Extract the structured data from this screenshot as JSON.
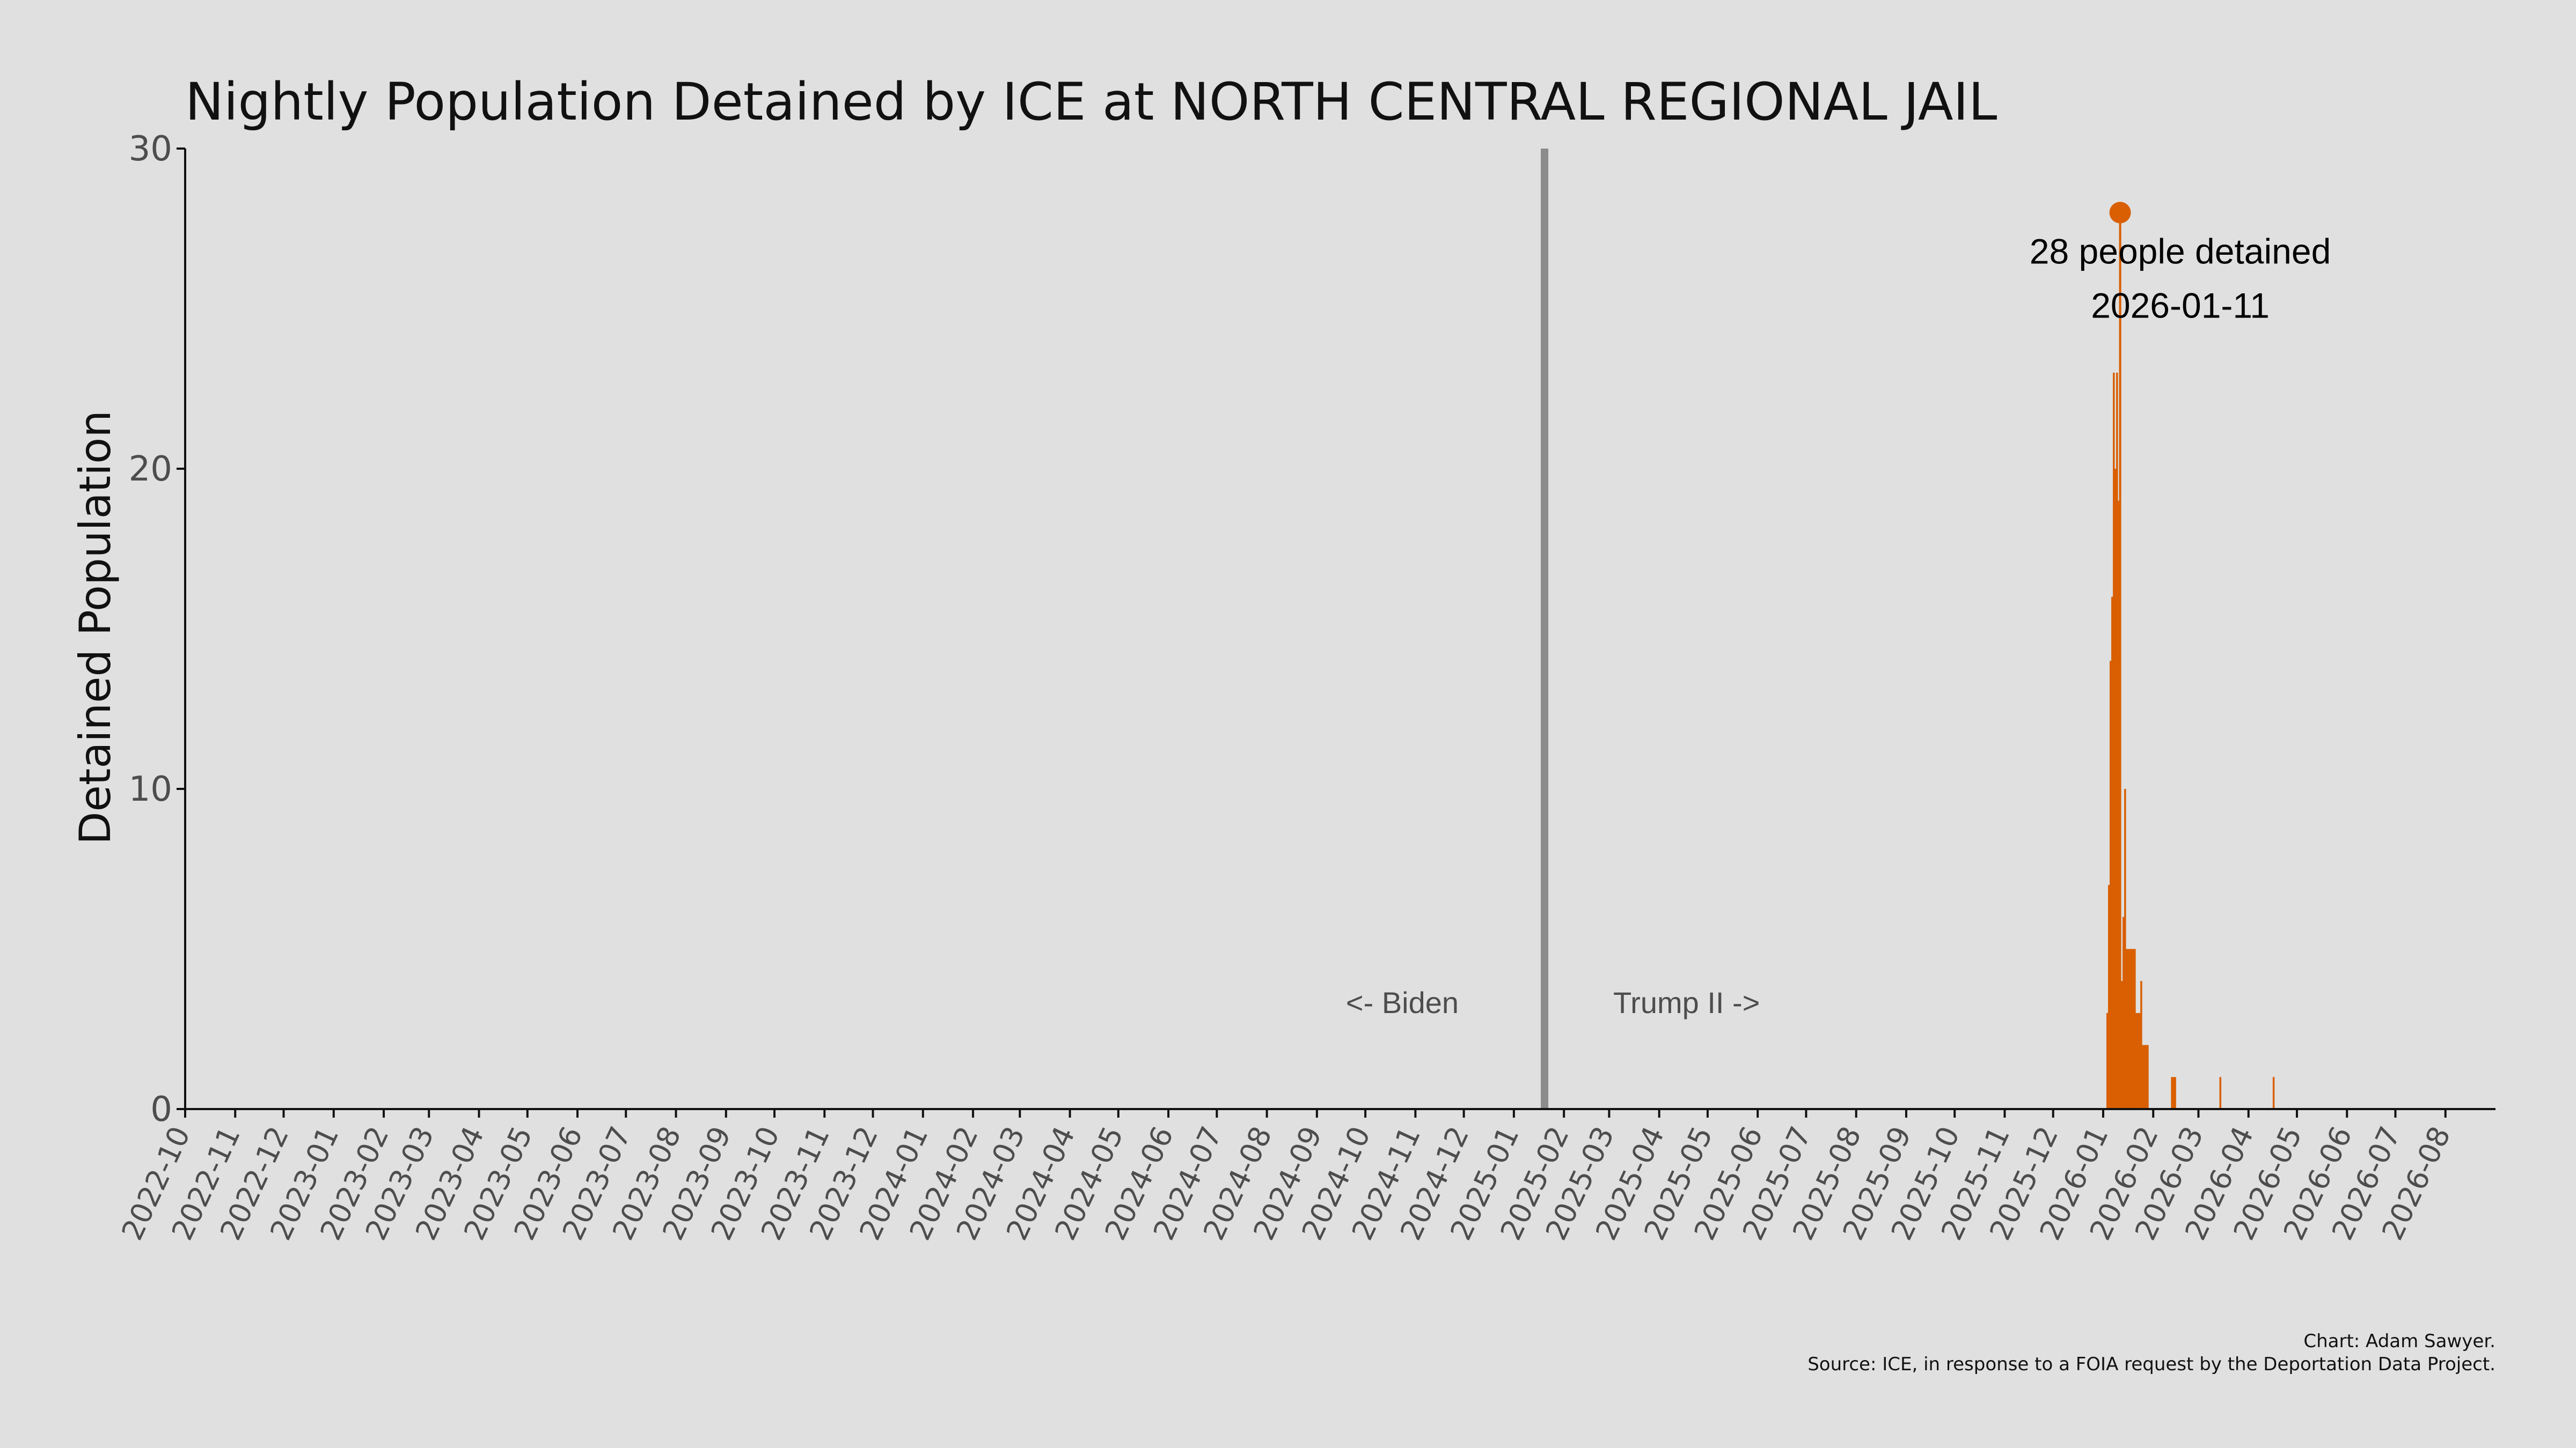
{
  "chart_data": {
    "type": "bar",
    "title": "Nightly Population Detained by ICE at NORTH CENTRAL REGIONAL JAIL",
    "ylabel": "Detained Population",
    "xlabel": "",
    "ylim": [
      0,
      30
    ],
    "yticks": [
      0,
      10,
      20,
      30
    ],
    "xlim": [
      "2022-10-01",
      "2026-08-31"
    ],
    "x_tick_labels": [
      "2022-10",
      "2022-11",
      "2022-12",
      "2023-01",
      "2023-02",
      "2023-03",
      "2023-04",
      "2023-05",
      "2023-06",
      "2023-07",
      "2023-08",
      "2023-09",
      "2023-10",
      "2023-11",
      "2023-12",
      "2024-01",
      "2024-02",
      "2024-03",
      "2024-04",
      "2024-05",
      "2024-06",
      "2024-07",
      "2024-08",
      "2024-09",
      "2024-10",
      "2024-11",
      "2024-12",
      "2025-01",
      "2025-02",
      "2025-03",
      "2025-04",
      "2025-05",
      "2025-06",
      "2025-07",
      "2025-08",
      "2025-09",
      "2025-10",
      "2025-11",
      "2025-12",
      "2026-01",
      "2026-02",
      "2026-03",
      "2026-04",
      "2026-05",
      "2026-06",
      "2026-07",
      "2026-08"
    ],
    "grid": false,
    "bar_color": "#d95f02",
    "divider_color": "#8c8c8c",
    "series": [
      {
        "values": [
          {
            "date": "2026-01-03",
            "value": 3
          },
          {
            "date": "2026-01-04",
            "value": 7
          },
          {
            "date": "2026-01-05",
            "value": 14
          },
          {
            "date": "2026-01-06",
            "value": 16
          },
          {
            "date": "2026-01-07",
            "value": 23
          },
          {
            "date": "2026-01-08",
            "value": 20
          },
          {
            "date": "2026-01-09",
            "value": 23
          },
          {
            "date": "2026-01-10",
            "value": 19
          },
          {
            "date": "2026-01-11",
            "value": 28
          },
          {
            "date": "2026-01-12",
            "value": 4
          },
          {
            "date": "2026-01-13",
            "value": 6
          },
          {
            "date": "2026-01-14",
            "value": 10
          },
          {
            "date": "2026-01-15",
            "value": 5
          },
          {
            "date": "2026-01-16",
            "value": 5
          },
          {
            "date": "2026-01-17",
            "value": 5
          },
          {
            "date": "2026-01-18",
            "value": 5
          },
          {
            "date": "2026-01-19",
            "value": 5
          },
          {
            "date": "2026-01-20",
            "value": 5
          },
          {
            "date": "2026-01-21",
            "value": 3
          },
          {
            "date": "2026-01-22",
            "value": 3
          },
          {
            "date": "2026-01-23",
            "value": 3
          },
          {
            "date": "2026-01-24",
            "value": 4
          },
          {
            "date": "2026-01-25",
            "value": 2
          },
          {
            "date": "2026-01-26",
            "value": 2
          },
          {
            "date": "2026-01-27",
            "value": 2
          },
          {
            "date": "2026-01-28",
            "value": 2
          },
          {
            "date": "2026-02-12",
            "value": 1
          },
          {
            "date": "2026-02-13",
            "value": 1
          },
          {
            "date": "2026-02-14",
            "value": 1
          },
          {
            "date": "2026-03-14",
            "value": 1
          },
          {
            "date": "2026-04-16",
            "value": 1
          }
        ]
      }
    ],
    "divider_date": "2025-01-20",
    "era_labels": {
      "left": "<- Biden",
      "right": "Trump II ->"
    },
    "peak": {
      "date": "2026-01-11",
      "value": 28,
      "label": "28 people detained",
      "date_label": "2026-01-11"
    },
    "caption": [
      "Chart: Adam Sawyer.",
      "Source: ICE, in response to a FOIA request by the Deportation Data Project."
    ]
  }
}
